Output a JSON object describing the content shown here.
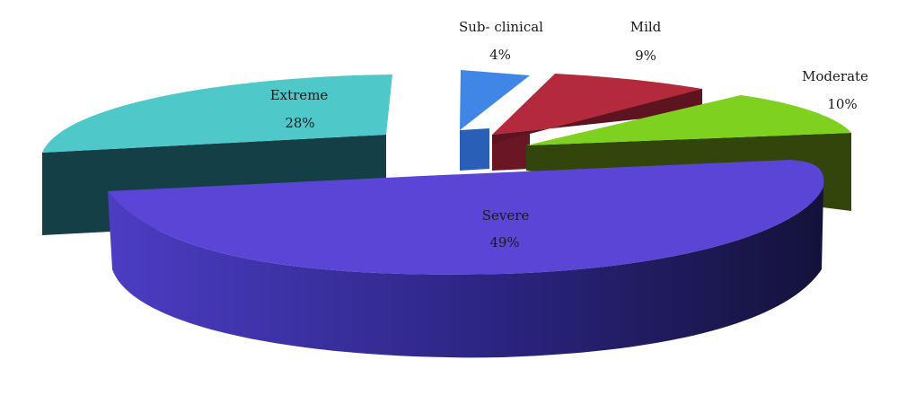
{
  "chart_data": {
    "type": "pie",
    "style": "3d-exploded",
    "categories": [
      "Sub- clinical",
      "Mild",
      "Moderate",
      "Severe",
      "Extreme"
    ],
    "values": [
      4,
      9,
      10,
      49,
      28
    ],
    "value_labels": [
      "4%",
      "9%",
      "10%",
      "49%",
      "28%"
    ],
    "colors": [
      "#3f86e6",
      "#b22a3c",
      "#7fd11f",
      "#5b45d6",
      "#4ec8c8"
    ],
    "side_colors": [
      "#2455a6",
      "#5e1420",
      "#32450a",
      "#2d2680",
      "#133c44"
    ],
    "legend": "none",
    "title": ""
  }
}
